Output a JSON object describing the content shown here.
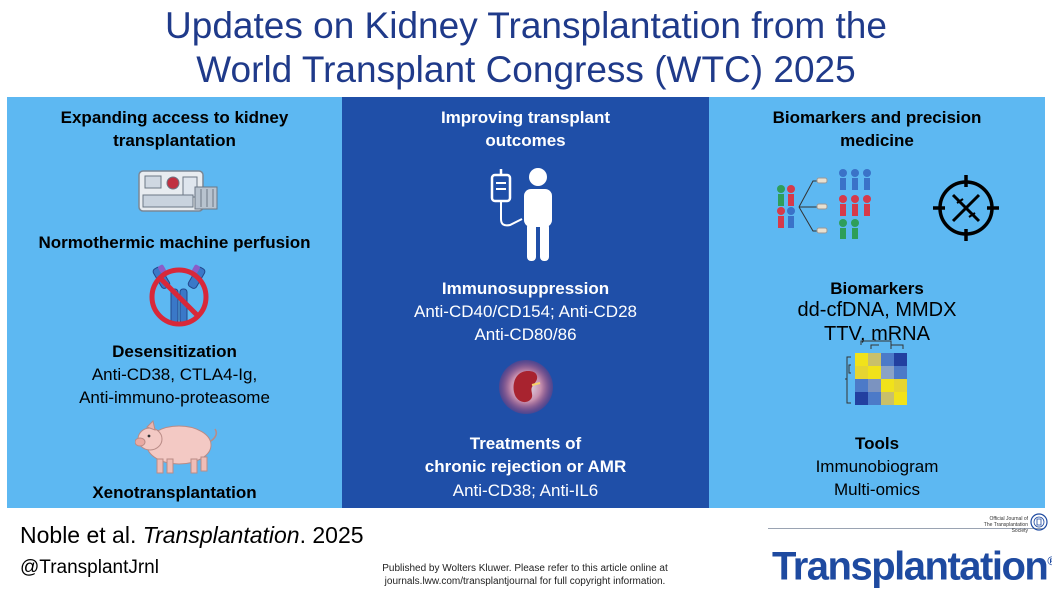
{
  "title": {
    "line1": "Updates on Kidney Transplantation from the",
    "line2": "World Transplant Congress (WTC) 2025"
  },
  "left": {
    "heading_line1": "Expanding access to kidney",
    "heading_line2": "transplantation",
    "item1": "Normothermic machine perfusion",
    "item2_title": "Desensitization",
    "item2_line1": "Anti-CD38, CTLA4-Ig,",
    "item2_line2": "Anti-immuno-proteasome",
    "item3": "Xenotransplantation"
  },
  "middle": {
    "heading_line1": "Improving transplant",
    "heading_line2": "outcomes",
    "item1_title": "Immunosuppression",
    "item1_line1": "Anti-CD40/CD154; Anti-CD28",
    "item1_line2": "Anti-CD80/86",
    "item2_title_line1": "Treatments of",
    "item2_title_line2": "chronic rejection or AMR",
    "item2_line1": "Anti-CD38; Anti-IL6"
  },
  "right": {
    "heading_line1": "Biomarkers and precision",
    "heading_line2": "medicine",
    "item1_title": "Biomarkers",
    "item1_line1": "dd-cfDNA, MMDX",
    "item1_line2": "TTV, mRNA",
    "item2_title": "Tools",
    "item2_line1": "Immunobiogram",
    "item2_line2": "Multi-omics"
  },
  "footer": {
    "citation_authors": "Noble et al.",
    "citation_journal": "Transplantation",
    "citation_year": ". 2025",
    "handle": "@TransplantJrnl",
    "publisher_line1": "Published by Wolters Kluwer. Please refer to this article online at",
    "publisher_line2": "journals.lww.com/transplantjournal for full copyright information.",
    "brand": "Transplantation",
    "brand_registered": "®",
    "brand_small_line1": "Official Journal of",
    "brand_small_line2": "The Transplantation Society"
  },
  "colors": {
    "title": "#1f3a8a",
    "panel_light": "#5db8f2",
    "panel_dark": "#1f4fa8",
    "brand": "#1e4aa0"
  },
  "icons": [
    "perfusion-machine-icon",
    "prohibited-antibody-icon",
    "pig-icon",
    "iv-patient-icon",
    "kidney-icon",
    "patient-stratification-icon",
    "dna-target-icon",
    "heatmap-icon",
    "society-seal-icon"
  ]
}
